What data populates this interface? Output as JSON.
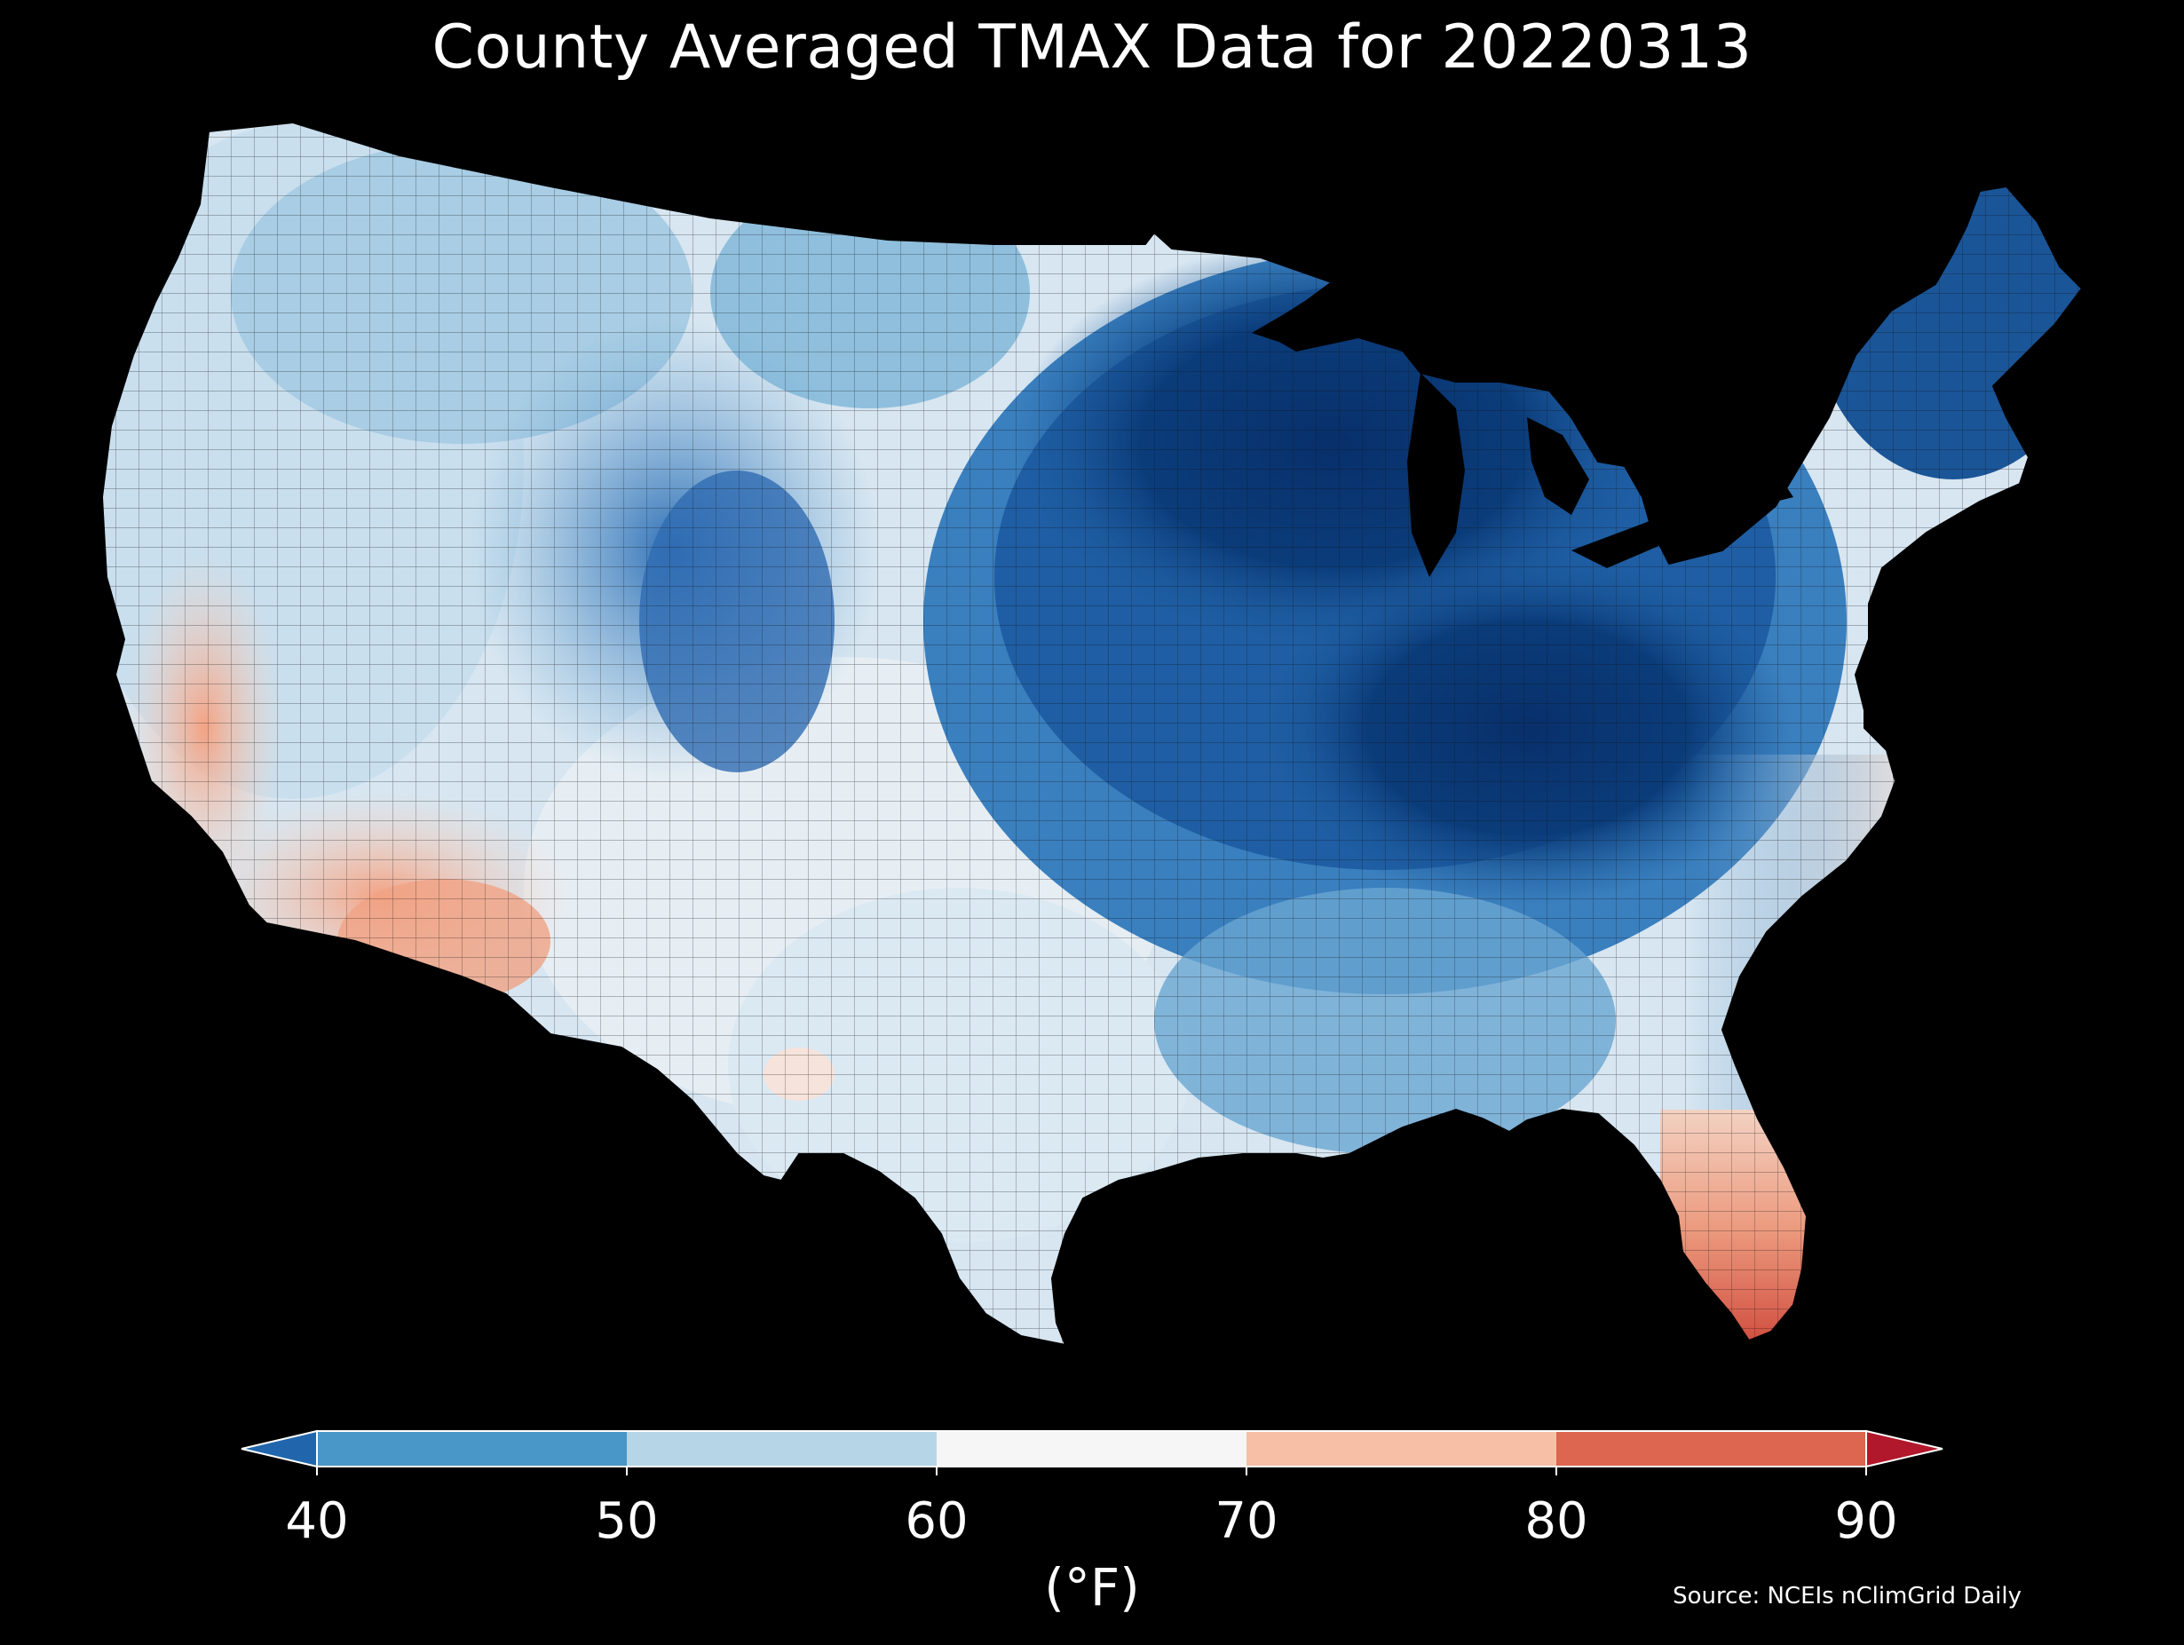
{
  "title": "County Averaged TMAX Data for 20220313",
  "source": "Source: NCEIs nClimGrid Daily",
  "colorbar": {
    "label": "(°F)",
    "ticks": [
      "40",
      "50",
      "60",
      "70",
      "80",
      "90"
    ],
    "bins": [
      {
        "range": [
          40,
          50
        ],
        "color": "#4996c8"
      },
      {
        "range": [
          50,
          60
        ],
        "color": "#b6d6e8"
      },
      {
        "range": [
          60,
          70
        ],
        "color": "#f6f6f6"
      },
      {
        "range": [
          70,
          80
        ],
        "color": "#f7bfa6"
      },
      {
        "range": [
          80,
          90
        ],
        "color": "#dc6650"
      }
    ],
    "under_color": "#2166ac",
    "over_color": "#b2182b",
    "extend": "both"
  },
  "map": {
    "variable": "TMAX",
    "date": "20220313",
    "units": "°F",
    "background": "#000000"
  }
}
